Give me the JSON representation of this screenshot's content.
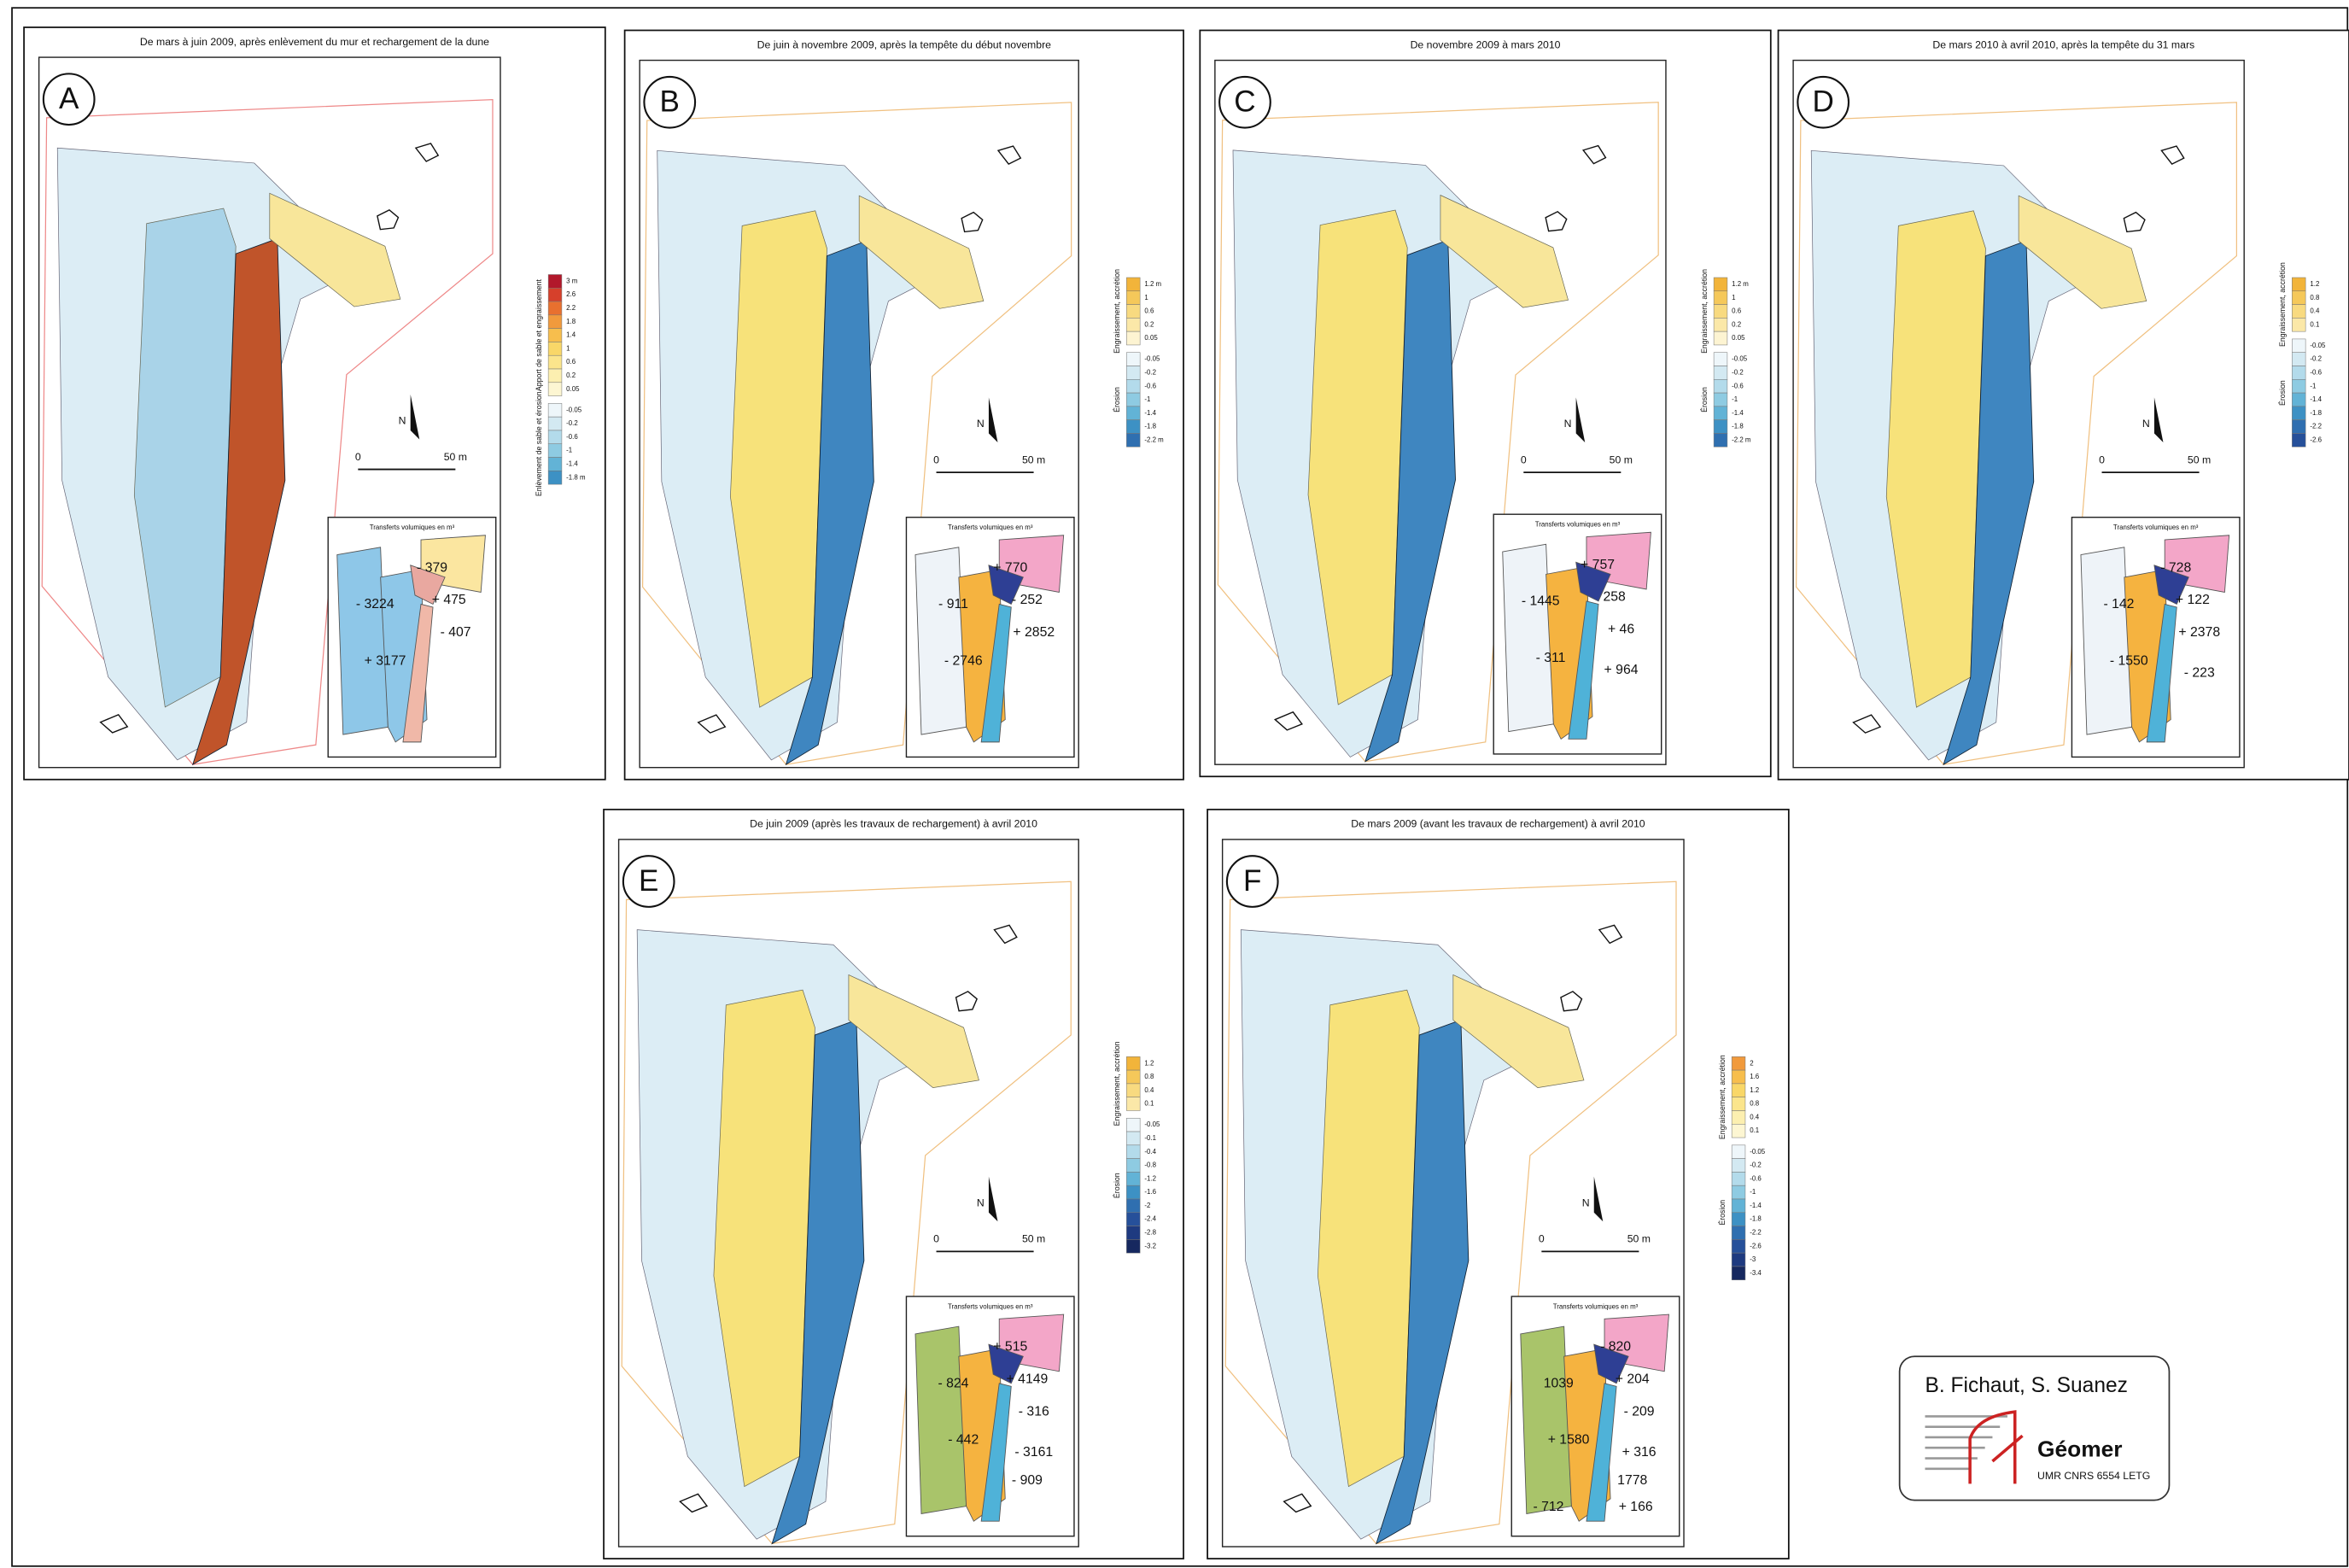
{
  "panels": [
    {
      "letter": "A",
      "title": "De mars à juin 2009, après enlèvement du mur et rechargement de la dune",
      "legend": {
        "accretion_label": "Apport de sable et engraissement",
        "accretion_ticks": [
          "3 m",
          "2.6",
          "2.2",
          "1.8",
          "1.4",
          "1",
          "0.6",
          "0.2",
          "0.05"
        ],
        "erosion_label": "Enlèvement de sable et érosion",
        "erosion_ticks": [
          "-0.05",
          "-0.2",
          "-0.6",
          "-1",
          "-1.4",
          "-1.8 m"
        ]
      },
      "scale": {
        "north": "N",
        "zero": "0",
        "distance": "50 m"
      },
      "inset": {
        "title": "Transferts volumiques en m³",
        "values": [
          "- 379",
          "+ 475",
          "- 3224",
          "- 407",
          "+ 3177"
        ]
      }
    },
    {
      "letter": "B",
      "title": "De juin à novembre 2009, après la tempête du début novembre",
      "legend": {
        "accretion_label": "Engraissement, accrétion",
        "accretion_ticks": [
          "1.2 m",
          "1",
          "0.6",
          "0.2",
          "0.05"
        ],
        "erosion_label": "Érosion",
        "erosion_ticks": [
          "-0.05",
          "-0.2",
          "-0.6",
          "-1",
          "-1.4",
          "-1.8",
          "-2.2 m"
        ]
      },
      "scale": {
        "north": "N",
        "zero": "0",
        "distance": "50 m"
      },
      "inset": {
        "title": "Transferts volumiques en m³",
        "values": [
          "+ 770",
          "- 252",
          "- 911",
          "+ 2852",
          "- 2746"
        ]
      }
    },
    {
      "letter": "C",
      "title": "De novembre 2009 à mars 2010",
      "legend": {
        "accretion_label": "Engraissement, accrétion",
        "accretion_ticks": [
          "1.2 m",
          "1",
          "0.6",
          "0.2",
          "0.05"
        ],
        "erosion_label": "Érosion",
        "erosion_ticks": [
          "-0.05",
          "-0.2",
          "-0.6",
          "-1",
          "-1.4",
          "-1.8",
          "-2.2 m"
        ]
      },
      "scale": {
        "north": "N",
        "zero": "0",
        "distance": "50 m"
      },
      "inset": {
        "title": "Transferts volumiques en m³",
        "values": [
          "+ 757",
          "258",
          "- 1445",
          "+ 46",
          "- 311",
          "+ 964"
        ]
      }
    },
    {
      "letter": "D",
      "title": "De mars 2010 à avril 2010, après la tempête du 31 mars",
      "legend": {
        "accretion_label": "Engraissement, accrétion",
        "accretion_ticks": [
          "1.2",
          "0.8",
          "0.4",
          "0.1"
        ],
        "erosion_label": "Érosion",
        "erosion_ticks": [
          "-0.05",
          "-0.2",
          "-0.6",
          "-1",
          "-1.4",
          "-1.8",
          "-2.2",
          "-2.6"
        ]
      },
      "scale": {
        "north": "N",
        "zero": "0",
        "distance": "50 m"
      },
      "inset": {
        "title": "Transferts volumiques en m³",
        "values": [
          "- 728",
          "+ 122",
          "- 142",
          "+ 2378",
          "- 1550",
          "- 223"
        ]
      }
    },
    {
      "letter": "E",
      "title": "De juin 2009 (après les travaux de rechargement) à avril 2010",
      "legend": {
        "accretion_label": "Engraissement, accrétion",
        "accretion_ticks": [
          "1.2",
          "0.8",
          "0.4",
          "0.1"
        ],
        "erosion_label": "Érosion",
        "erosion_ticks": [
          "-0.05",
          "-0.1",
          "-0.4",
          "-0.8",
          "-1.2",
          "-1.6",
          "-2",
          "-2.4",
          "-2.8",
          "-3.2"
        ]
      },
      "scale": {
        "north": "N",
        "zero": "0",
        "distance": "50 m"
      },
      "inset": {
        "title": "Transferts volumiques en m³",
        "values": [
          "+ 515",
          "+ 4149",
          "- 824",
          "- 316",
          "- 442",
          "- 3161",
          "- 909"
        ]
      }
    },
    {
      "letter": "F",
      "title": "De mars 2009 (avant les travaux de rechargement) à avril 2010",
      "legend": {
        "accretion_label": "Engraissement, accrétion",
        "accretion_ticks": [
          "2",
          "1.6",
          "1.2",
          "0.8",
          "0.4",
          "0.1"
        ],
        "erosion_label": "Érosion",
        "erosion_ticks": [
          "-0.05",
          "-0.2",
          "-0.6",
          "-1",
          "-1.4",
          "-1.8",
          "-2.2",
          "-2.6",
          "-3",
          "-3.4"
        ]
      },
      "scale": {
        "north": "N",
        "zero": "0",
        "distance": "50 m"
      },
      "inset": {
        "title": "Transferts volumiques en m³",
        "values": [
          "- 820",
          "+ 204",
          "1039",
          "- 209",
          "+ 1580",
          "+ 316",
          "1778",
          "+ 166",
          "- 712"
        ]
      }
    }
  ],
  "credit": {
    "authors": "B. Fichaut, S. Suanez",
    "org": "Géomer",
    "unit": "UMR CNRS 6554 LETG"
  }
}
